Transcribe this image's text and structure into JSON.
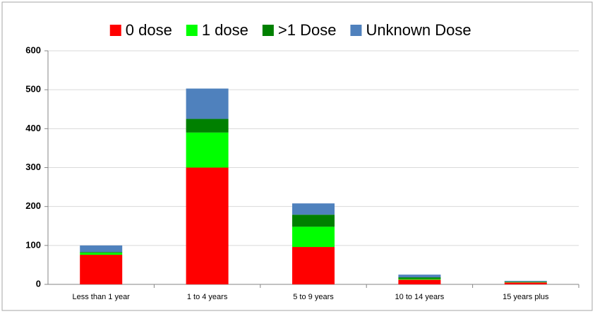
{
  "chart_data": {
    "type": "stacked_bar",
    "categories": [
      "Less than 1 year",
      "1 to 4 years",
      "5 to 9 years",
      "10 to 14 years",
      "15 years plus"
    ],
    "series": [
      {
        "name": "0 dose",
        "color": "#ff0000",
        "values": [
          76,
          300,
          96,
          12,
          5
        ]
      },
      {
        "name": "1 dose",
        "color": "#00ff00",
        "values": [
          5,
          90,
          52,
          2,
          1
        ]
      },
      {
        "name": ">1 Dose",
        "color": "#008000",
        "values": [
          2,
          35,
          31,
          4,
          1
        ]
      },
      {
        "name": "Unknown Dose",
        "color": "#4f81bd",
        "values": [
          17,
          78,
          29,
          7,
          2
        ]
      }
    ],
    "ylim": [
      0,
      600
    ],
    "yticks": [
      0,
      100,
      200,
      300,
      400,
      500,
      600
    ],
    "grid": true,
    "legend": "top"
  }
}
